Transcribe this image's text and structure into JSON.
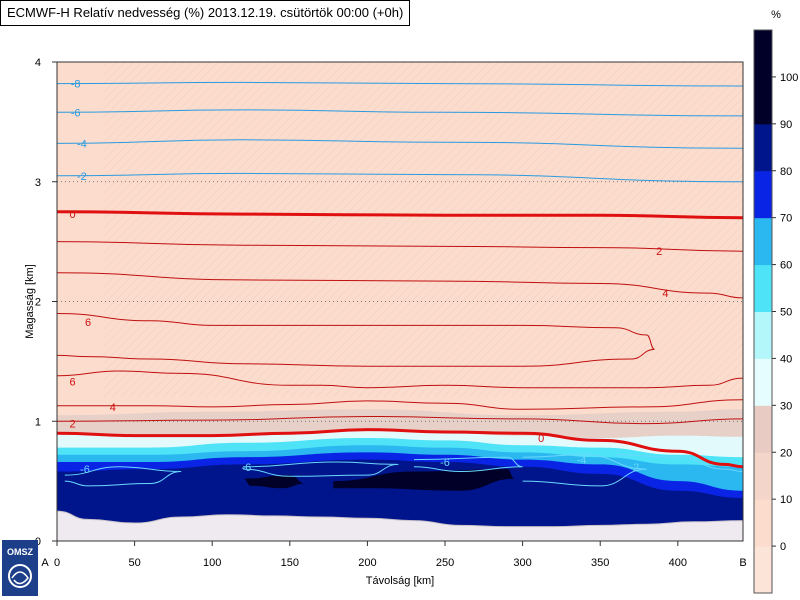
{
  "title": "ECMWF-H Relatív nedvesség (%) 2013.12.19. csütörtök 00:00 (+0h)",
  "logo_text": "OMSZ",
  "colorbar": {
    "unit_label": "%",
    "levels": [
      0,
      10,
      20,
      30,
      40,
      50,
      60,
      70,
      80,
      90,
      100
    ],
    "colors": [
      "#fde4d8",
      "#fbdccd",
      "#f4d5c9",
      "#e8cbc3",
      "#e6fdff",
      "#b4f7fb",
      "#4fe3f7",
      "#2bb7ef",
      "#0a24e6",
      "#00158c",
      "#000028"
    ],
    "tick_labels": [
      "0",
      "10",
      "20",
      "30",
      "40",
      "50",
      "60",
      "70",
      "80",
      "90",
      "100"
    ]
  },
  "chart_data": {
    "type": "heatmap",
    "xlabel": "Távolság [km]",
    "ylabel": "Magasság [km]",
    "xlim": [
      0,
      442
    ],
    "ylim": [
      0,
      4
    ],
    "xticks": [
      0,
      50,
      100,
      150,
      200,
      250,
      300,
      350,
      400
    ],
    "xtick_labels": [
      "0",
      "50",
      "100",
      "150",
      "200",
      "250",
      "300",
      "350",
      "400"
    ],
    "yticks": [
      0,
      1,
      2,
      3,
      4
    ],
    "ytick_labels": [
      "0",
      "1",
      "2",
      "3",
      "4"
    ],
    "endpoint_labels": {
      "start": "A",
      "end": "B"
    },
    "grid_y_dotted": [
      1,
      2,
      3
    ],
    "terrain": [
      [
        0,
        0.25
      ],
      [
        20,
        0.18
      ],
      [
        50,
        0.15
      ],
      [
        80,
        0.2
      ],
      [
        110,
        0.22
      ],
      [
        140,
        0.21
      ],
      [
        170,
        0.2
      ],
      [
        200,
        0.19
      ],
      [
        230,
        0.17
      ],
      [
        260,
        0.13
      ],
      [
        290,
        0.12
      ],
      [
        320,
        0.12
      ],
      [
        350,
        0.13
      ],
      [
        380,
        0.14
      ],
      [
        410,
        0.16
      ],
      [
        442,
        0.17
      ]
    ],
    "rh_fields": [
      {
        "level": 40,
        "color": "#e6d0c8",
        "top": [
          [
            0,
            1.05
          ],
          [
            100,
            1.08
          ],
          [
            200,
            1.1
          ],
          [
            300,
            1.05
          ],
          [
            400,
            1.08
          ],
          [
            442,
            1.1
          ]
        ]
      },
      {
        "level": 60,
        "color": "#e3fafd",
        "top": [
          [
            0,
            0.9
          ],
          [
            60,
            0.88
          ],
          [
            120,
            0.88
          ],
          [
            200,
            0.92
          ],
          [
            250,
            0.9
          ],
          [
            300,
            0.88
          ],
          [
            350,
            0.86
          ],
          [
            400,
            0.88
          ],
          [
            442,
            0.87
          ]
        ]
      },
      {
        "level": 70,
        "color": "#4fe3f7",
        "top": [
          [
            0,
            0.78
          ],
          [
            60,
            0.78
          ],
          [
            120,
            0.82
          ],
          [
            200,
            0.86
          ],
          [
            250,
            0.84
          ],
          [
            300,
            0.8
          ],
          [
            350,
            0.78
          ],
          [
            400,
            0.72
          ],
          [
            442,
            0.7
          ]
        ]
      },
      {
        "level": 80,
        "color": "#2bb7ef",
        "top": [
          [
            0,
            0.72
          ],
          [
            60,
            0.72
          ],
          [
            120,
            0.75
          ],
          [
            200,
            0.8
          ],
          [
            250,
            0.78
          ],
          [
            300,
            0.74
          ],
          [
            350,
            0.7
          ],
          [
            400,
            0.64
          ],
          [
            442,
            0.62
          ]
        ]
      },
      {
        "level": 90,
        "color": "#0a24e6",
        "top": [
          [
            0,
            0.66
          ],
          [
            60,
            0.66
          ],
          [
            120,
            0.7
          ],
          [
            200,
            0.74
          ],
          [
            250,
            0.72
          ],
          [
            300,
            0.68
          ],
          [
            350,
            0.64
          ],
          [
            400,
            0.5
          ],
          [
            442,
            0.42
          ]
        ]
      },
      {
        "level": 95,
        "color": "#00158c",
        "top": [
          [
            0,
            0.58
          ],
          [
            60,
            0.6
          ],
          [
            120,
            0.64
          ],
          [
            200,
            0.68
          ],
          [
            250,
            0.66
          ],
          [
            300,
            0.62
          ],
          [
            350,
            0.56
          ],
          [
            400,
            0.42
          ],
          [
            442,
            0.36
          ]
        ]
      }
    ],
    "rh_cores": [
      {
        "color": "#000028",
        "pts": [
          [
            120,
            0.52
          ],
          [
            150,
            0.55
          ],
          [
            160,
            0.48
          ],
          [
            145,
            0.44
          ],
          [
            125,
            0.46
          ]
        ]
      },
      {
        "color": "#000028",
        "pts": [
          [
            178,
            0.5
          ],
          [
            230,
            0.58
          ],
          [
            290,
            0.6
          ],
          [
            295,
            0.52
          ],
          [
            260,
            0.42
          ],
          [
            200,
            0.44
          ],
          [
            178,
            0.44
          ]
        ]
      }
    ],
    "temperature_isotherms": [
      {
        "value": -8,
        "kind": "blue",
        "pts": [
          [
            0,
            3.82
          ],
          [
            120,
            3.83
          ],
          [
            250,
            3.82
          ],
          [
            442,
            3.8
          ]
        ],
        "label_at": [
          12,
          3.82
        ],
        "label": "-8"
      },
      {
        "value": -6,
        "kind": "blue",
        "pts": [
          [
            0,
            3.58
          ],
          [
            120,
            3.6
          ],
          [
            250,
            3.58
          ],
          [
            442,
            3.55
          ]
        ],
        "label_at": [
          12,
          3.58
        ],
        "label": "-6"
      },
      {
        "value": -4,
        "kind": "blue",
        "pts": [
          [
            0,
            3.32
          ],
          [
            120,
            3.35
          ],
          [
            250,
            3.33
          ],
          [
            442,
            3.28
          ]
        ],
        "label_at": [
          16,
          3.32
        ],
        "label": "-4"
      },
      {
        "value": -2,
        "kind": "blue",
        "pts": [
          [
            0,
            3.05
          ],
          [
            120,
            3.07
          ],
          [
            250,
            3.06
          ],
          [
            442,
            3.0
          ]
        ],
        "label_at": [
          16,
          3.05
        ],
        "label": "-2"
      },
      {
        "value": 0,
        "kind": "zero",
        "pts": [
          [
            0,
            2.75
          ],
          [
            120,
            2.73
          ],
          [
            250,
            2.72
          ],
          [
            350,
            2.72
          ],
          [
            442,
            2.7
          ]
        ],
        "label_at": [
          10,
          2.73
        ],
        "label": "0"
      },
      {
        "value": 2,
        "kind": "red",
        "pts": [
          [
            0,
            2.5
          ],
          [
            120,
            2.47
          ],
          [
            250,
            2.46
          ],
          [
            350,
            2.45
          ],
          [
            442,
            2.42
          ]
        ],
        "label_at": [
          388,
          2.42
        ],
        "label": "2"
      },
      {
        "value": 4,
        "kind": "red",
        "pts": [
          [
            0,
            2.24
          ],
          [
            120,
            2.18
          ],
          [
            250,
            2.17
          ],
          [
            350,
            2.15
          ],
          [
            420,
            2.07
          ],
          [
            442,
            2.03
          ]
        ],
        "label_at": [
          392,
          2.07
        ],
        "label": "4"
      },
      {
        "value": 6,
        "kind": "red",
        "pts": [
          [
            0,
            1.9
          ],
          [
            60,
            1.84
          ],
          [
            100,
            1.8
          ],
          [
            200,
            1.8
          ],
          [
            300,
            1.8
          ],
          [
            360,
            1.78
          ],
          [
            380,
            1.72
          ],
          [
            385,
            1.6
          ],
          [
            370,
            1.52
          ],
          [
            300,
            1.46
          ],
          [
            200,
            1.46
          ],
          [
            120,
            1.48
          ],
          [
            60,
            1.52
          ],
          [
            20,
            1.54
          ],
          [
            0,
            1.55
          ]
        ],
        "label_at": [
          20,
          1.83
        ],
        "label": "6"
      },
      {
        "value": 6,
        "kind": "red",
        "pts": [
          [
            0,
            1.38
          ],
          [
            40,
            1.42
          ],
          [
            80,
            1.4
          ],
          [
            150,
            1.3
          ],
          [
            170,
            1.3
          ],
          [
            200,
            1.28
          ],
          [
            250,
            1.3
          ],
          [
            300,
            1.28
          ],
          [
            380,
            1.28
          ],
          [
            420,
            1.3
          ],
          [
            442,
            1.36
          ]
        ],
        "label_at": [
          10,
          1.33
        ],
        "label": "6"
      },
      {
        "value": 4,
        "kind": "red",
        "pts": [
          [
            0,
            1.13
          ],
          [
            60,
            1.13
          ],
          [
            100,
            1.12
          ],
          [
            150,
            1.14
          ],
          [
            200,
            1.17
          ],
          [
            250,
            1.15
          ],
          [
            300,
            1.1
          ],
          [
            380,
            1.12
          ],
          [
            442,
            1.18
          ]
        ],
        "label_at": [
          36,
          1.12
        ],
        "label": "4"
      },
      {
        "value": 2,
        "kind": "red",
        "pts": [
          [
            0,
            1.0
          ],
          [
            100,
            1.01
          ],
          [
            200,
            1.04
          ],
          [
            300,
            1.02
          ],
          [
            380,
            0.98
          ],
          [
            442,
            1.02
          ]
        ],
        "label_at": [
          10,
          0.98
        ],
        "label": "2"
      },
      {
        "value": 0,
        "kind": "zero",
        "pts": [
          [
            0,
            0.9
          ],
          [
            50,
            0.88
          ],
          [
            100,
            0.88
          ],
          [
            150,
            0.9
          ],
          [
            200,
            0.93
          ],
          [
            250,
            0.91
          ],
          [
            300,
            0.9
          ],
          [
            350,
            0.84
          ],
          [
            400,
            0.75
          ],
          [
            430,
            0.64
          ],
          [
            442,
            0.62
          ]
        ],
        "label_at": [
          312,
          0.86
        ],
        "label": "0"
      },
      {
        "value": -6,
        "kind": "cyan",
        "pts": [
          [
            5,
            0.55
          ],
          [
            40,
            0.62
          ],
          [
            80,
            0.58
          ],
          [
            60,
            0.48
          ],
          [
            20,
            0.46
          ],
          [
            5,
            0.5
          ]
        ],
        "label_at": [
          18,
          0.6
        ],
        "label": "-6"
      },
      {
        "value": -6,
        "kind": "cyan",
        "pts": [
          [
            120,
            0.62
          ],
          [
            180,
            0.66
          ],
          [
            220,
            0.64
          ],
          [
            200,
            0.55
          ],
          [
            150,
            0.54
          ],
          [
            120,
            0.6
          ]
        ],
        "label_at": [
          122,
          0.62
        ],
        "label": "-6"
      },
      {
        "value": -6,
        "kind": "cyan",
        "pts": [
          [
            230,
            0.68
          ],
          [
            290,
            0.7
          ],
          [
            300,
            0.62
          ],
          [
            260,
            0.58
          ],
          [
            230,
            0.62
          ]
        ],
        "label_at": [
          250,
          0.66
        ],
        "label": "-6"
      },
      {
        "value": -4,
        "kind": "cyan",
        "pts": [
          [
            300,
            0.7
          ],
          [
            340,
            0.72
          ],
          [
            380,
            0.6
          ],
          [
            350,
            0.46
          ],
          [
            300,
            0.5
          ]
        ],
        "label_at": [
          338,
          0.68
        ],
        "label": "-4"
      },
      {
        "value": -2,
        "kind": "cyan",
        "pts": [
          [
            360,
            0.72
          ],
          [
            400,
            0.7
          ],
          [
            430,
            0.6
          ],
          [
            442,
            0.58
          ]
        ],
        "label_at": [
          372,
          0.62
        ],
        "label": "-2"
      }
    ]
  }
}
